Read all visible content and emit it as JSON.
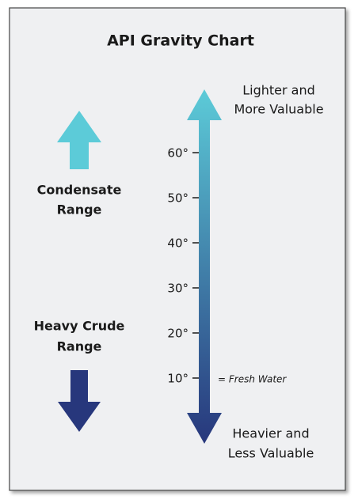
{
  "title": "API Gravity Chart",
  "top_label": [
    "Lighter and",
    "More Valuable"
  ],
  "bottom_label": [
    "Heavier and",
    "Less Valuable"
  ],
  "condensate_label": [
    "Condensate",
    "Range"
  ],
  "heavy_label": [
    "Heavy Crude",
    "Range"
  ],
  "scale": {
    "ticks": [
      "60°",
      "50°",
      "40°",
      "30°",
      "20°",
      "10°"
    ],
    "note": "= Fresh Water"
  }
}
